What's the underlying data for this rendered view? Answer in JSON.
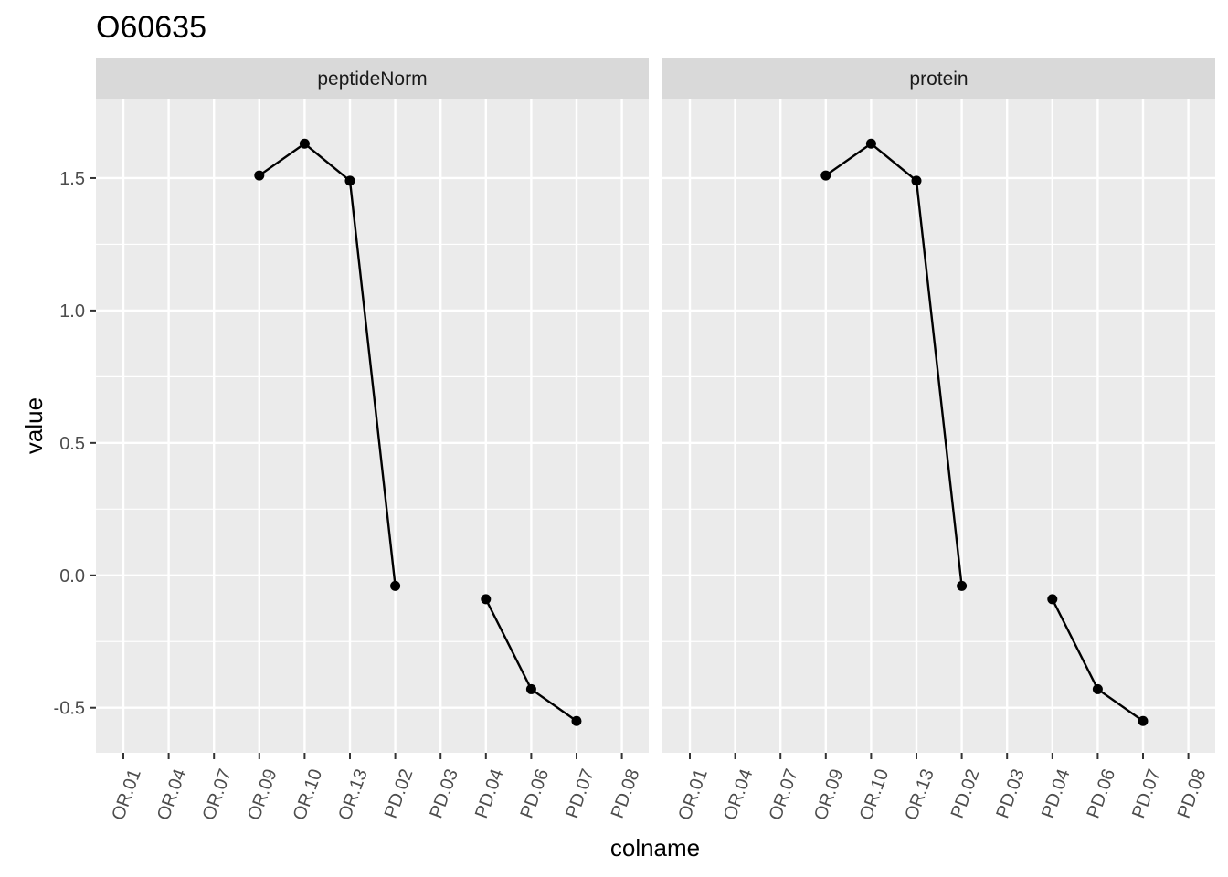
{
  "chart_data": {
    "type": "line",
    "title": "O60635",
    "xlabel": "colname",
    "ylabel": "value",
    "categories": [
      "OR.01",
      "OR.04",
      "OR.07",
      "OR.09",
      "OR.10",
      "OR.13",
      "PD.02",
      "PD.03",
      "PD.04",
      "PD.06",
      "PD.07",
      "PD.08"
    ],
    "yticks": [
      -0.5,
      0.0,
      0.5,
      1.0,
      1.5
    ],
    "ytick_labels": [
      "-0.5",
      "0.0",
      "0.5",
      "1.0",
      "1.5"
    ],
    "ylim": [
      -0.67,
      1.8
    ],
    "grid": true,
    "facets": [
      {
        "label": "peptideNorm",
        "values": [
          null,
          null,
          null,
          1.51,
          1.63,
          1.49,
          -0.04,
          null,
          -0.09,
          -0.43,
          -0.55,
          null
        ]
      },
      {
        "label": "protein",
        "values": [
          null,
          null,
          null,
          1.51,
          1.63,
          1.49,
          -0.04,
          null,
          -0.09,
          -0.43,
          -0.55,
          null
        ]
      }
    ],
    "colors": {
      "panel_background": "#ebebeb",
      "strip_background": "#d9d9d9",
      "grid_line": "#ffffff",
      "line": "#000000",
      "point": "#000000"
    }
  }
}
